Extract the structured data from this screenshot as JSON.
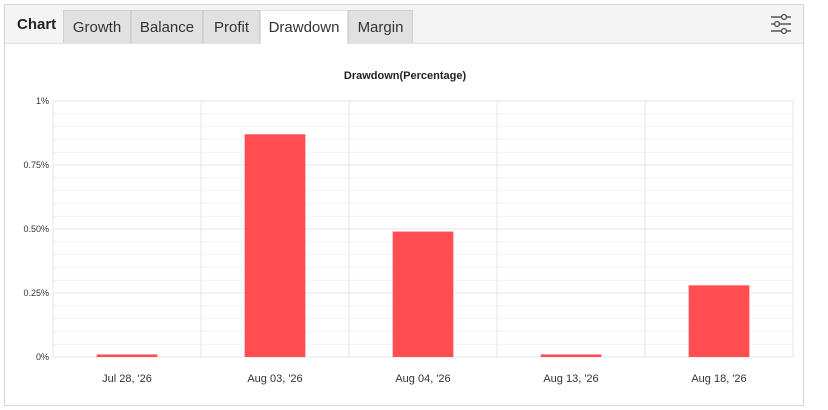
{
  "header": {
    "title": "Chart",
    "tabs": [
      {
        "label": "Growth",
        "active": false
      },
      {
        "label": "Balance",
        "active": false
      },
      {
        "label": "Profit",
        "active": false
      },
      {
        "label": "Drawdown",
        "active": true
      },
      {
        "label": "Margin",
        "active": false
      }
    ],
    "settings_icon": "sliders-icon"
  },
  "colors": {
    "bar": "#ff4d52",
    "grid": "#e6e6e6",
    "minor_grid": "#f3f3f3"
  },
  "chart_data": {
    "type": "bar",
    "title": "Drawdown(Percentage)",
    "xlabel": "",
    "ylabel": "",
    "categories": [
      "Jul 28, '26",
      "Aug 03, '26",
      "Aug 04, '26",
      "Aug 13, '26",
      "Aug 18, '26"
    ],
    "values": [
      0.01,
      0.87,
      0.49,
      0.01,
      0.28
    ],
    "ylim": [
      0,
      1
    ],
    "yticks": [
      {
        "value": 0,
        "label": "0%"
      },
      {
        "value": 0.25,
        "label": "0.25%"
      },
      {
        "value": 0.5,
        "label": "0.50%"
      },
      {
        "value": 0.75,
        "label": "0.75%"
      },
      {
        "value": 1,
        "label": "1%"
      }
    ],
    "grid": true,
    "legend": "none"
  }
}
